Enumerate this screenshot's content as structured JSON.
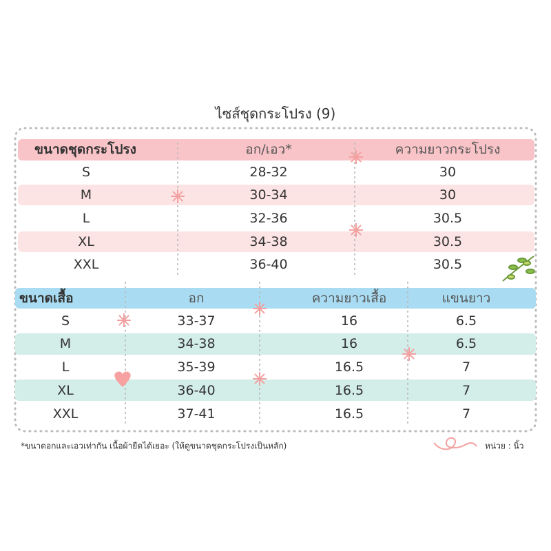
{
  "title": "ไซส์ชุดกระโปรง (9)",
  "skirt_table": {
    "headers": [
      "ขนาดชุดกระโปรง",
      "อก/เอว*",
      "ความยาวกระโปรง"
    ],
    "rows": [
      [
        "S",
        "28-32",
        "30"
      ],
      [
        "M",
        "30-34",
        "30"
      ],
      [
        "L",
        "32-36",
        "30.5"
      ],
      [
        "XL",
        "34-38",
        "30.5"
      ],
      [
        "XXL",
        "36-40",
        "30.5"
      ]
    ]
  },
  "shirt_table": {
    "headers": [
      "ขนาดเสื้อ",
      "อก",
      "ความยาวเสื้อ",
      "แขนยาว"
    ],
    "rows": [
      [
        "S",
        "33-37",
        "16",
        "6.5"
      ],
      [
        "M",
        "34-38",
        "16",
        "6.5"
      ],
      [
        "L",
        "35-39",
        "16.5",
        "7"
      ],
      [
        "XL",
        "36-40",
        "16.5",
        "7"
      ],
      [
        "XXL",
        "37-41",
        "16.5",
        "7"
      ]
    ]
  },
  "footnote": "*ขนาดอกและเอวเท่ากัน  เนื้อผ้ายืดได้เยอะ (ให้ดูขนาดชุดกระโปรงเป็นหลัก)",
  "unit": "หน่วย : นิ้ว"
}
